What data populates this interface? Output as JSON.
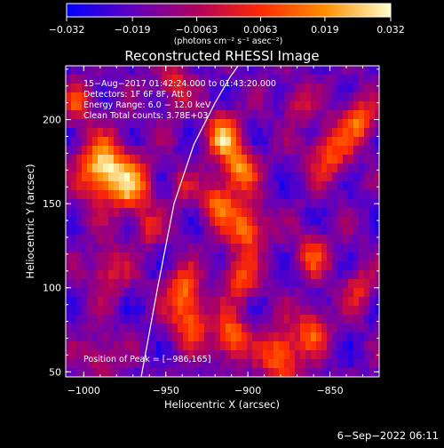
{
  "chart_data": {
    "type": "heatmap",
    "title": "Reconstructed RHESSI Image",
    "xlabel": "Heliocentric X (arcsec)",
    "ylabel": "Heliocentric Y (arcsec)",
    "xlim": [
      -1011,
      -820
    ],
    "ylim": [
      47,
      232
    ],
    "x_ticks": [
      -1000,
      -950,
      -900,
      -850
    ],
    "y_ticks": [
      50,
      100,
      150,
      200
    ],
    "x_tick_labels": [
      "−1000",
      "−950",
      "−900",
      "−850"
    ],
    "y_tick_labels": [
      "50",
      "100",
      "150",
      "200"
    ],
    "colorbar": {
      "range": [
        -0.032,
        0.032
      ],
      "ticks": [
        -0.032,
        -0.019,
        -0.0063,
        0.0063,
        0.019,
        0.032
      ],
      "tick_labels": [
        "−0.032",
        "−0.019",
        "−0.0063",
        "0.0063",
        "0.019",
        "0.032"
      ],
      "unit_label": "(photons cm⁻² s⁻¹ asec⁻²)",
      "colors": [
        "#0000ff",
        "#6000c0",
        "#b00060",
        "#ff2a00",
        "#ff9000",
        "#ffffcc"
      ]
    },
    "info_lines": [
      "15−Aug−2017 01:42:24.000 to 01:43:20.000",
      "Detectors: 1F 6F 8F, Att 0",
      "Energy Range: 6.0 − 12.0 keV",
      "Clean     Total counts: 3.78E+03"
    ],
    "peak_label": "Position of Peak = [−986,165]",
    "limb_curve_x": [
      -965,
      -955,
      -945,
      -933,
      -920,
      -911,
      -906
    ],
    "limb_curve_y": [
      47,
      100,
      150,
      185,
      210,
      225,
      232
    ]
  },
  "footer": {
    "timestamp": "6−Sep−2022 06:11"
  }
}
